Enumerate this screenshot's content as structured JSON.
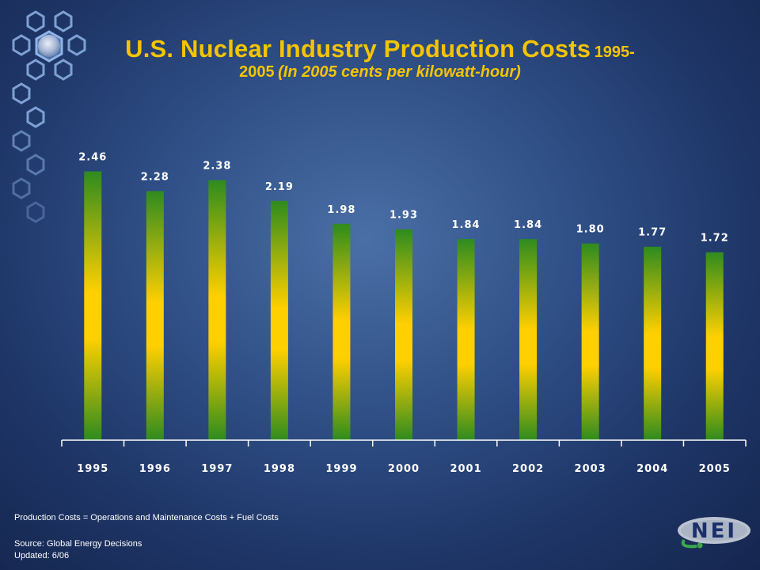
{
  "title": {
    "main": "U.S. Nuclear Industry Production Costs",
    "years": "1995-",
    "line2_year": "2005",
    "line2_sub": "(In 2005 cents per kilowatt-hour)"
  },
  "chart_data": {
    "type": "bar",
    "title": "U.S. Nuclear Industry Production Costs 1995-2005 (In 2005 cents per kilowatt-hour)",
    "categories": [
      "1995",
      "1996",
      "1997",
      "1998",
      "1999",
      "2000",
      "2001",
      "2002",
      "2003",
      "2004",
      "2005"
    ],
    "values": [
      2.46,
      2.28,
      2.38,
      2.19,
      1.98,
      1.93,
      1.84,
      1.84,
      1.8,
      1.77,
      1.72
    ],
    "data_labels": [
      "2.46",
      "2.28",
      "2.38",
      "2.19",
      "1.98",
      "1.93",
      "1.84",
      "1.84",
      "1.80",
      "1.77",
      "1.72"
    ],
    "xlabel": "",
    "ylabel": "",
    "ylim": [
      0,
      3.0
    ],
    "grid": false,
    "colors": {
      "bar_center": "#ffd000",
      "bar_edge": "#2e8b1e",
      "axis": "#ffffff"
    }
  },
  "footer": {
    "definition": "Production Costs = Operations and Maintenance Costs  + Fuel Costs",
    "source": "Source: Global Energy Decisions",
    "updated": "Updated: 6/06"
  },
  "logo": {
    "text": "NEI"
  }
}
